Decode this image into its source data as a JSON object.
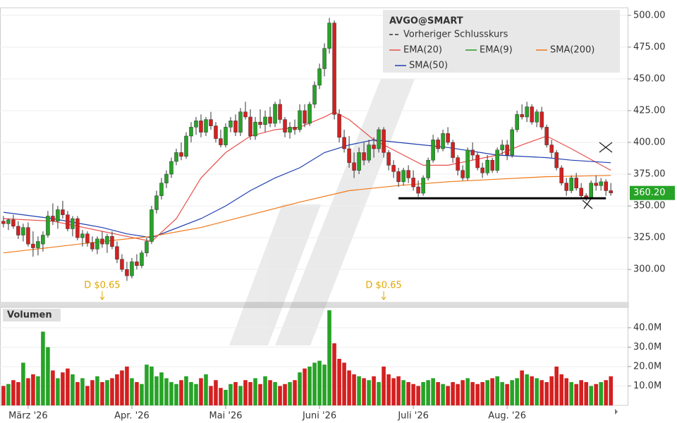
{
  "chart_data": {
    "type": "candlestick",
    "symbol": "AVGO@SMART",
    "legend": [
      {
        "name": "Vorheriger Schlusskurs",
        "color": "#333333",
        "dashed": true
      },
      {
        "name": "EMA(20)",
        "color": "#e8504a"
      },
      {
        "name": "EMA(9)",
        "color": "#2a9a2a"
      },
      {
        "name": "SMA(200)",
        "color": "#f07818"
      },
      {
        "name": "SMA(50)",
        "color": "#2040b0"
      }
    ],
    "up_color": "#27a327",
    "down_color": "#d42020",
    "xlim": [
      -0.7,
      126.4
    ],
    "xticks": [
      {
        "value": 5,
        "label": "März '26"
      },
      {
        "value": 26,
        "label": "Apr. '26"
      },
      {
        "value": 45,
        "label": "Mai '26"
      },
      {
        "value": 64,
        "label": "Juni '26"
      },
      {
        "value": 83,
        "label": "Juli '26"
      },
      {
        "value": 102,
        "label": "Aug. '26"
      }
    ],
    "ylim": [
      274,
      506
    ],
    "yticks": [
      {
        "value": 300,
        "label": "300.00"
      },
      {
        "value": 325,
        "label": "325.00"
      },
      {
        "value": 350,
        "label": "350.00"
      },
      {
        "value": 375,
        "label": "375.00"
      },
      {
        "value": 400,
        "label": "400.00"
      },
      {
        "value": 425,
        "label": "425.00"
      },
      {
        "value": 450,
        "label": "450.00"
      },
      {
        "value": 475,
        "label": "475.00"
      },
      {
        "value": 500,
        "label": "500.00"
      }
    ],
    "candles": [
      [
        338,
        342,
        333,
        336
      ],
      [
        336,
        340,
        331,
        339
      ],
      [
        339,
        343,
        332,
        334
      ],
      [
        334,
        338,
        324,
        327
      ],
      [
        327,
        336,
        322,
        333
      ],
      [
        333,
        337,
        318,
        320
      ],
      [
        320,
        330,
        310,
        317
      ],
      [
        317,
        326,
        311,
        322
      ],
      [
        320,
        330,
        314,
        327
      ],
      [
        327,
        346,
        325,
        342
      ],
      [
        342,
        352,
        335,
        338
      ],
      [
        338,
        350,
        332,
        347
      ],
      [
        347,
        354,
        340,
        343
      ],
      [
        343,
        346,
        330,
        332
      ],
      [
        332,
        342,
        326,
        340
      ],
      [
        340,
        342,
        323,
        325
      ],
      [
        325,
        331,
        318,
        328
      ],
      [
        328,
        330,
        318,
        321
      ],
      [
        321,
        326,
        314,
        316
      ],
      [
        316,
        326,
        312,
        324
      ],
      [
        324,
        330,
        317,
        320
      ],
      [
        320,
        328,
        313,
        326
      ],
      [
        326,
        330,
        316,
        318
      ],
      [
        318,
        322,
        305,
        308
      ],
      [
        308,
        312,
        298,
        300
      ],
      [
        300,
        306,
        291,
        295
      ],
      [
        295,
        309,
        293,
        306
      ],
      [
        306,
        312,
        300,
        303
      ],
      [
        303,
        315,
        301,
        313
      ],
      [
        313,
        325,
        310,
        322
      ],
      [
        322,
        350,
        320,
        347
      ],
      [
        347,
        362,
        344,
        358
      ],
      [
        358,
        372,
        355,
        368
      ],
      [
        368,
        378,
        364,
        375
      ],
      [
        375,
        388,
        372,
        385
      ],
      [
        385,
        395,
        382,
        392
      ],
      [
        392,
        400,
        386,
        389
      ],
      [
        389,
        408,
        387,
        405
      ],
      [
        405,
        416,
        400,
        412
      ],
      [
        412,
        420,
        406,
        417
      ],
      [
        417,
        422,
        404,
        408
      ],
      [
        408,
        420,
        405,
        418
      ],
      [
        418,
        424,
        410,
        413
      ],
      [
        413,
        416,
        400,
        403
      ],
      [
        403,
        410,
        396,
        398
      ],
      [
        398,
        415,
        396,
        412
      ],
      [
        412,
        420,
        408,
        417
      ],
      [
        417,
        422,
        405,
        408
      ],
      [
        408,
        427,
        405,
        424
      ],
      [
        424,
        432,
        418,
        420
      ],
      [
        420,
        426,
        402,
        405
      ],
      [
        405,
        420,
        402,
        416
      ],
      [
        416,
        426,
        411,
        414
      ],
      [
        414,
        425,
        408,
        420
      ],
      [
        420,
        428,
        412,
        415
      ],
      [
        415,
        432,
        412,
        430
      ],
      [
        430,
        434,
        415,
        418
      ],
      [
        418,
        420,
        404,
        408
      ],
      [
        408,
        416,
        403,
        412
      ],
      [
        412,
        418,
        406,
        410
      ],
      [
        410,
        430,
        408,
        425
      ],
      [
        425,
        430,
        412,
        415
      ],
      [
        415,
        432,
        413,
        430
      ],
      [
        430,
        448,
        427,
        445
      ],
      [
        445,
        462,
        442,
        458
      ],
      [
        458,
        478,
        452,
        474
      ],
      [
        474,
        498,
        470,
        494
      ],
      [
        494,
        496,
        418,
        422
      ],
      [
        422,
        426,
        400,
        404
      ],
      [
        404,
        410,
        392,
        395
      ],
      [
        395,
        405,
        380,
        384
      ],
      [
        384,
        392,
        372,
        378
      ],
      [
        378,
        396,
        375,
        392
      ],
      [
        392,
        400,
        382,
        386
      ],
      [
        386,
        402,
        384,
        398
      ],
      [
        398,
        404,
        388,
        395
      ],
      [
        395,
        412,
        392,
        410
      ],
      [
        410,
        412,
        388,
        392
      ],
      [
        392,
        394,
        378,
        382
      ],
      [
        382,
        386,
        372,
        377
      ],
      [
        377,
        380,
        365,
        369
      ],
      [
        369,
        380,
        366,
        378
      ],
      [
        378,
        382,
        368,
        372
      ],
      [
        372,
        378,
        362,
        365
      ],
      [
        365,
        370,
        357,
        360
      ],
      [
        360,
        374,
        358,
        372
      ],
      [
        372,
        388,
        370,
        386
      ],
      [
        386,
        406,
        384,
        402
      ],
      [
        402,
        404,
        392,
        395
      ],
      [
        395,
        410,
        393,
        407
      ],
      [
        407,
        412,
        398,
        400
      ],
      [
        400,
        402,
        384,
        388
      ],
      [
        388,
        390,
        374,
        378
      ],
      [
        378,
        382,
        370,
        372
      ],
      [
        372,
        396,
        370,
        394
      ],
      [
        394,
        400,
        386,
        390
      ],
      [
        390,
        392,
        378,
        380
      ],
      [
        380,
        384,
        372,
        376
      ],
      [
        376,
        390,
        374,
        386
      ],
      [
        386,
        388,
        376,
        378
      ],
      [
        378,
        396,
        376,
        394
      ],
      [
        394,
        402,
        390,
        398
      ],
      [
        398,
        402,
        386,
        390
      ],
      [
        390,
        412,
        388,
        410
      ],
      [
        410,
        425,
        408,
        422
      ],
      [
        422,
        430,
        418,
        420
      ],
      [
        420,
        432,
        416,
        428
      ],
      [
        428,
        430,
        414,
        416
      ],
      [
        416,
        426,
        412,
        424
      ],
      [
        424,
        428,
        410,
        412
      ],
      [
        412,
        414,
        396,
        398
      ],
      [
        398,
        402,
        388,
        392
      ],
      [
        392,
        394,
        378,
        380
      ],
      [
        380,
        382,
        366,
        368
      ],
      [
        368,
        372,
        358,
        362
      ],
      [
        362,
        374,
        360,
        372
      ],
      [
        372,
        376,
        362,
        364
      ],
      [
        364,
        368,
        356,
        358
      ],
      [
        358,
        360,
        354,
        356
      ],
      [
        356,
        370,
        355,
        368
      ],
      [
        368,
        374,
        362,
        366
      ],
      [
        366,
        372,
        362,
        369
      ],
      [
        369,
        371,
        358,
        362
      ],
      [
        362,
        368,
        358,
        360.2
      ]
    ],
    "last_price": {
      "value": 360.2,
      "label": "360.20"
    },
    "indicators": [
      {
        "name": "EMA(20)",
        "color": "#e8504a",
        "x": [
          0,
          10,
          20,
          25,
          30,
          35,
          40,
          45,
          50,
          55,
          60,
          65,
          67,
          70,
          75,
          80,
          85,
          90,
          95,
          100,
          105,
          110,
          115,
          123
        ],
        "values": [
          340,
          338,
          330,
          326,
          322,
          340,
          372,
          392,
          405,
          410,
          412,
          420,
          424,
          418,
          402,
          392,
          382,
          382,
          386,
          390,
          398,
          405,
          395,
          378
        ]
      },
      {
        "name": "SMA(50)",
        "color": "#2040b0",
        "x": [
          0,
          10,
          20,
          25,
          30,
          40,
          45,
          50,
          55,
          60,
          65,
          70,
          75,
          80,
          85,
          90,
          100,
          110,
          115,
          123
        ],
        "values": [
          345,
          340,
          333,
          328,
          325,
          340,
          350,
          362,
          372,
          380,
          392,
          398,
          402,
          400,
          398,
          396,
          390,
          388,
          386,
          384
        ]
      },
      {
        "name": "SMA(200)",
        "color": "#f07818",
        "x": [
          0,
          20,
          30,
          40,
          50,
          60,
          70,
          80,
          90,
          100,
          110,
          123
        ],
        "values": [
          313,
          322,
          326,
          333,
          343,
          353,
          362,
          366,
          369,
          371,
          373,
          374
        ]
      }
    ],
    "support": {
      "value": 356,
      "x": [
        80,
        122
      ]
    },
    "dividends": [
      {
        "x": 20,
        "label": "D $0.65"
      },
      {
        "x": 77,
        "label": "D $0.65"
      }
    ],
    "volume_title": "Volumen",
    "volume_ylim": [
      0,
      50.5
    ],
    "volume_yticks": [
      {
        "value": 10,
        "label": "10.0M"
      },
      {
        "value": 20,
        "label": "20.0M"
      },
      {
        "value": 30,
        "label": "30.0M"
      },
      {
        "value": 40,
        "label": "40.0M"
      }
    ],
    "volume": [
      10,
      11,
      13,
      12,
      22,
      14,
      16,
      15,
      38,
      30,
      18,
      14,
      17,
      19,
      16,
      12,
      14,
      10,
      13,
      15,
      12,
      13,
      14,
      16,
      18,
      20,
      14,
      12,
      11,
      21,
      20,
      15,
      17,
      14,
      12,
      11,
      13,
      15,
      12,
      11,
      14,
      16,
      10,
      13,
      9,
      8,
      11,
      12,
      10,
      13,
      12,
      14,
      11,
      15,
      13,
      12,
      10,
      11,
      12,
      13,
      17,
      19,
      20,
      22,
      23,
      21,
      49,
      32,
      24,
      22,
      18,
      16,
      15,
      14,
      13,
      15,
      12,
      20,
      16,
      14,
      15,
      13,
      12,
      11,
      10,
      12,
      13,
      14,
      12,
      11,
      10,
      12,
      11,
      13,
      14,
      12,
      11,
      12,
      13,
      14,
      15,
      12,
      11,
      13,
      14,
      18,
      16,
      15,
      14,
      13,
      12,
      15,
      20,
      16,
      14,
      12,
      11,
      13,
      12,
      10,
      11,
      12,
      13,
      15
    ]
  }
}
